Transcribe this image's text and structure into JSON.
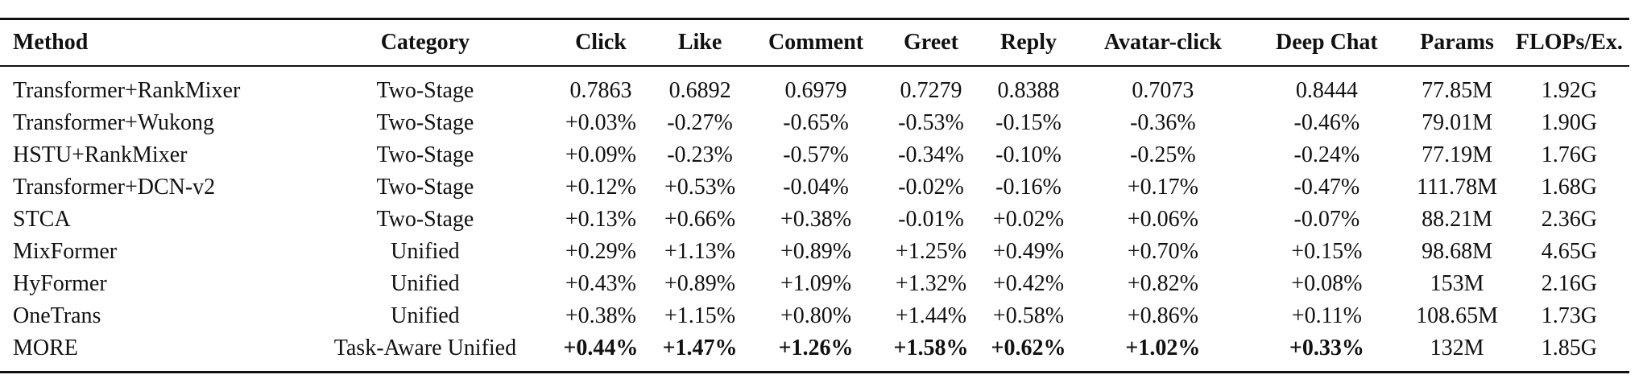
{
  "table": {
    "headers": [
      "Method",
      "Category",
      "Click",
      "Like",
      "Comment",
      "Greet",
      "Reply",
      "Avatar-click",
      "Deep Chat",
      "Params",
      "FLOPs/Ex."
    ],
    "rows": [
      [
        "Transformer+RankMixer",
        "Two-Stage",
        "0.7863",
        "0.6892",
        "0.6979",
        "0.7279",
        "0.8388",
        "0.7073",
        "0.8444",
        "77.85M",
        "1.92G"
      ],
      [
        "Transformer+Wukong",
        "Two-Stage",
        "+0.03%",
        "-0.27%",
        "-0.65%",
        "-0.53%",
        "-0.15%",
        "-0.36%",
        "-0.46%",
        "79.01M",
        "1.90G"
      ],
      [
        "HSTU+RankMixer",
        "Two-Stage",
        "+0.09%",
        "-0.23%",
        "-0.57%",
        "-0.34%",
        "-0.10%",
        "-0.25%",
        "-0.24%",
        "77.19M",
        "1.76G"
      ],
      [
        "Transformer+DCN-v2",
        "Two-Stage",
        "+0.12%",
        "+0.53%",
        "-0.04%",
        "-0.02%",
        "-0.16%",
        "+0.17%",
        "-0.47%",
        "111.78M",
        "1.68G"
      ],
      [
        "STCA",
        "Two-Stage",
        "+0.13%",
        "+0.66%",
        "+0.38%",
        "-0.01%",
        "+0.02%",
        "+0.06%",
        "-0.07%",
        "88.21M",
        "2.36G"
      ],
      [
        "MixFormer",
        "Unified",
        "+0.29%",
        "+1.13%",
        "+0.89%",
        "+1.25%",
        "+0.49%",
        "+0.70%",
        "+0.15%",
        "98.68M",
        "4.65G"
      ],
      [
        "HyFormer",
        "Unified",
        "+0.43%",
        "+0.89%",
        "+1.09%",
        "+1.32%",
        "+0.42%",
        "+0.82%",
        "+0.08%",
        "153M",
        "2.16G"
      ],
      [
        "OneTrans",
        "Unified",
        "+0.38%",
        "+1.15%",
        "+0.80%",
        "+1.44%",
        "+0.58%",
        "+0.86%",
        "+0.11%",
        "108.65M",
        "1.73G"
      ],
      [
        "MORE",
        "Task-Aware Unified",
        "+0.44%",
        "+1.47%",
        "+1.26%",
        "+1.58%",
        "+0.62%",
        "+1.02%",
        "+0.33%",
        "132M",
        "1.85G"
      ]
    ],
    "bold_last_row_metrics": true
  }
}
